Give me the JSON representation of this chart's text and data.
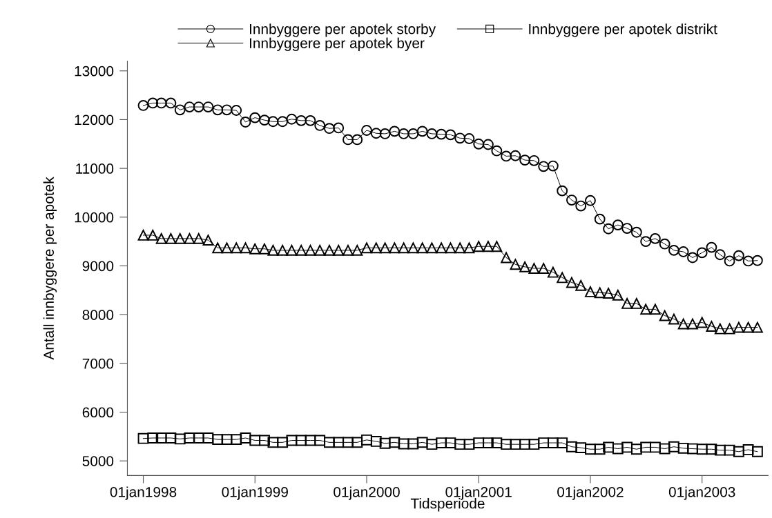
{
  "chart_data": {
    "type": "line",
    "xlabel": "Tidsperiode",
    "ylabel": "Antall innbyggere per apotek",
    "x": [
      "1998-01",
      "1998-02",
      "1998-03",
      "1998-04",
      "1998-05",
      "1998-06",
      "1998-07",
      "1998-08",
      "1998-09",
      "1998-10",
      "1998-11",
      "1998-12",
      "1999-01",
      "1999-02",
      "1999-03",
      "1999-04",
      "1999-05",
      "1999-06",
      "1999-07",
      "1999-08",
      "1999-09",
      "1999-10",
      "1999-11",
      "1999-12",
      "2000-01",
      "2000-02",
      "2000-03",
      "2000-04",
      "2000-05",
      "2000-06",
      "2000-07",
      "2000-08",
      "2000-09",
      "2000-10",
      "2000-11",
      "2000-12",
      "2001-01",
      "2001-02",
      "2001-03",
      "2001-04",
      "2001-05",
      "2001-06",
      "2001-07",
      "2001-08",
      "2001-09",
      "2001-10",
      "2001-11",
      "2001-12",
      "2002-01",
      "2002-02",
      "2002-03",
      "2002-04",
      "2002-05",
      "2002-06",
      "2002-07",
      "2002-08",
      "2002-09",
      "2002-10",
      "2002-11",
      "2002-12",
      "2003-01",
      "2003-02",
      "2003-03",
      "2003-04",
      "2003-05",
      "2003-06",
      "2003-07"
    ],
    "series": [
      {
        "name": "Innbyggere per apotek storby",
        "color": "#000000",
        "marker": "circle",
        "values": [
          12290,
          12340,
          12340,
          12340,
          12200,
          12260,
          12260,
          12260,
          12200,
          12200,
          12190,
          11950,
          12040,
          11990,
          11960,
          11960,
          12010,
          11980,
          11980,
          11880,
          11820,
          11830,
          11590,
          11590,
          11780,
          11720,
          11710,
          11760,
          11710,
          11710,
          11760,
          11710,
          11700,
          11690,
          11620,
          11610,
          11500,
          11490,
          11360,
          11250,
          11260,
          11170,
          11160,
          11040,
          11050,
          10540,
          10350,
          10230,
          10340,
          9960,
          9760,
          9840,
          9770,
          9690,
          9500,
          9560,
          9450,
          9320,
          9290,
          9170,
          9270,
          9380,
          9230,
          9100,
          9210,
          9100,
          9110
        ]
      },
      {
        "name": "Innbyggere per apotek byer",
        "color": "#000000",
        "marker": "triangle",
        "values": [
          9630,
          9630,
          9560,
          9560,
          9560,
          9560,
          9560,
          9530,
          9370,
          9370,
          9370,
          9370,
          9350,
          9350,
          9320,
          9320,
          9320,
          9320,
          9320,
          9320,
          9320,
          9320,
          9320,
          9320,
          9370,
          9370,
          9370,
          9370,
          9370,
          9370,
          9370,
          9370,
          9370,
          9370,
          9370,
          9370,
          9400,
          9400,
          9400,
          9170,
          9030,
          8980,
          8950,
          8950,
          8870,
          8760,
          8660,
          8600,
          8470,
          8450,
          8440,
          8400,
          8230,
          8230,
          8110,
          8110,
          7980,
          7910,
          7810,
          7810,
          7840,
          7760,
          7710,
          7710,
          7740,
          7740,
          7740
        ]
      },
      {
        "name": "Innbyggere per apotek distrikt",
        "color": "#000000",
        "marker": "square",
        "values": [
          5460,
          5470,
          5470,
          5470,
          5450,
          5470,
          5470,
          5470,
          5440,
          5440,
          5440,
          5470,
          5420,
          5420,
          5380,
          5380,
          5420,
          5420,
          5420,
          5420,
          5380,
          5380,
          5380,
          5380,
          5430,
          5400,
          5360,
          5380,
          5350,
          5350,
          5380,
          5340,
          5370,
          5370,
          5340,
          5340,
          5370,
          5370,
          5370,
          5340,
          5340,
          5340,
          5340,
          5370,
          5370,
          5370,
          5290,
          5270,
          5240,
          5240,
          5280,
          5250,
          5280,
          5240,
          5280,
          5280,
          5250,
          5290,
          5260,
          5250,
          5240,
          5240,
          5220,
          5220,
          5190,
          5230,
          5190
        ]
      }
    ],
    "xlim": [
      "1997-11-10",
      "2003-08-05"
    ],
    "xticks": [
      {
        "value": "1998-01-01",
        "label": "01jan1998"
      },
      {
        "value": "1999-01-01",
        "label": "01jan1999"
      },
      {
        "value": "2000-01-01",
        "label": "01jan2000"
      },
      {
        "value": "2001-01-01",
        "label": "01jan2001"
      },
      {
        "value": "2002-01-01",
        "label": "01jan2002"
      },
      {
        "value": "2003-01-01",
        "label": "01jan2003"
      }
    ],
    "ylim": [
      4700,
      13200
    ],
    "yticks": [
      5000,
      6000,
      7000,
      8000,
      9000,
      10000,
      11000,
      12000,
      13000
    ],
    "grid": false,
    "legend": "top",
    "line_style": "solid"
  }
}
